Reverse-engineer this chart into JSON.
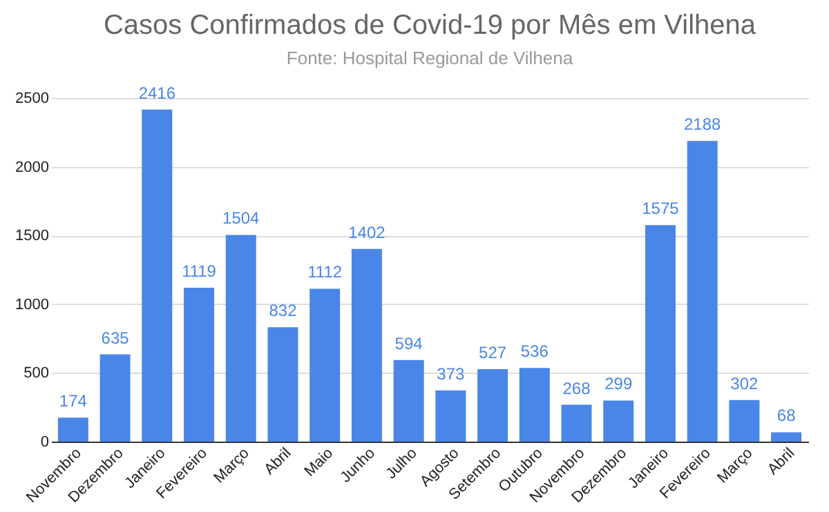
{
  "chart_data": {
    "type": "bar",
    "title": "Casos Confirmados de Covid-19 por Mês em Vilhena",
    "subtitle": "Fonte: Hospital Regional de Vilhena",
    "categories": [
      "Novembro",
      "Dezembro",
      "Janeiro",
      "Fevereiro",
      "Março",
      "Abril",
      "Maio",
      "Junho",
      "Julho",
      "Agosto",
      "Setembro",
      "Outubro",
      "Novembro",
      "Dezembro",
      "Janeiro",
      "Fevereiro",
      "Março",
      "Abril"
    ],
    "values": [
      174,
      635,
      2416,
      1119,
      1504,
      832,
      1112,
      1402,
      594,
      373,
      527,
      536,
      268,
      299,
      1575,
      2188,
      302,
      68
    ],
    "color": "#4a86e8",
    "ylim": [
      0,
      2500
    ],
    "yticks": [
      0,
      500,
      1000,
      1500,
      2000,
      2500
    ],
    "grid": "y",
    "data_labels": true
  }
}
